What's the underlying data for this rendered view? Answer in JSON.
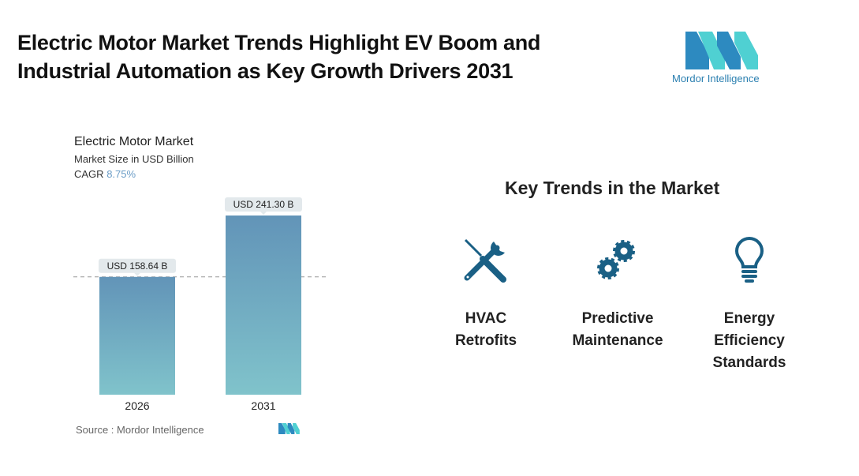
{
  "header": {
    "title_line1": "Electric Motor Market Trends Highlight EV Boom and",
    "title_line2": "Industrial Automation as Key Growth Drivers 2031",
    "logo_text": "Mordor Intelligence"
  },
  "chart_data": {
    "type": "bar",
    "title": "Electric Motor Market",
    "subtitle": "Market Size in USD Billion",
    "cagr_label": "CAGR",
    "cagr_value": "8.75%",
    "categories": [
      "2026",
      "2031"
    ],
    "values": [
      158.64,
      241.3
    ],
    "data_labels": [
      "USD 158.64 B",
      "USD 241.30 B"
    ],
    "ylim": [
      0,
      241.3
    ],
    "reference_line": "dashed at 2026 value",
    "colors": {
      "bar_top": "#6294b8",
      "bar_bottom": "#80c3cb"
    },
    "source": "Source :  Mordor Intelligence"
  },
  "trends": {
    "heading": "Key Trends in the Market",
    "icon_color": "#1a6085",
    "items": [
      {
        "icon": "wrench-screwdriver-icon",
        "line1": "HVAC",
        "line2": "Retrofits"
      },
      {
        "icon": "gears-icon",
        "line1": "Predictive",
        "line2": "Maintenance"
      },
      {
        "icon": "lightbulb-icon",
        "line1": "Energy",
        "line2": "Efficiency",
        "line3": "Standards"
      }
    ]
  }
}
